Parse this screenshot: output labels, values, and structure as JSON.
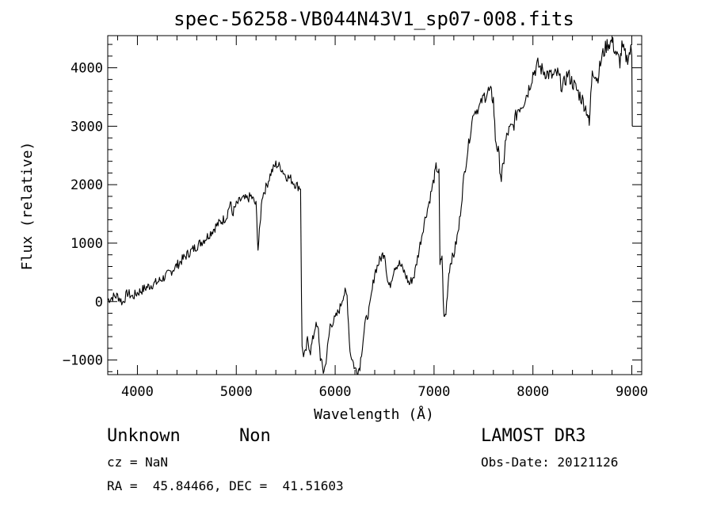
{
  "chart_data": {
    "type": "line",
    "title": "spec-56258-VB044N43V1_sp07-008.fits",
    "xlabel": "Wavelength (Å)",
    "ylabel": "Flux (relative)",
    "xlim": [
      3700,
      9100
    ],
    "ylim": [
      -1250,
      4550
    ],
    "x_ticks": [
      4000,
      5000,
      6000,
      7000,
      8000,
      9000
    ],
    "y_ticks": [
      -1000,
      0,
      1000,
      2000,
      3000,
      4000
    ],
    "x_tick_labels": [
      "4000",
      "5000",
      "6000",
      "7000",
      "8000",
      "9000"
    ],
    "y_tick_labels": [
      "−1000",
      "0",
      "1000",
      "2000",
      "3000",
      "4000"
    ],
    "grid": false,
    "legend": "none",
    "line_color": "#000000",
    "series": [
      {
        "x": [
          3700,
          3750,
          3800,
          3850,
          3900,
          3950,
          4000,
          4100,
          4200,
          4300,
          4400,
          4500,
          4600,
          4700,
          4800,
          4900,
          4940,
          4960,
          5000,
          5050,
          5100,
          5150,
          5200,
          5220,
          5240,
          5260,
          5300,
          5350,
          5400,
          5450,
          5500,
          5550,
          5600,
          5650,
          5660,
          5665,
          5680,
          5700,
          5720,
          5750,
          5780,
          5800,
          5830,
          5850,
          5880,
          5900,
          5930,
          5950,
          6000,
          6050,
          6080,
          6100,
          6120,
          6150,
          6200,
          6230,
          6250,
          6300,
          6350,
          6400,
          6450,
          6480,
          6500,
          6530,
          6550,
          6600,
          6650,
          6700,
          6750,
          6800,
          6850,
          6900,
          6950,
          7000,
          7020,
          7050,
          7060,
          7080,
          7100,
          7120,
          7150,
          7170,
          7200,
          7250,
          7300,
          7350,
          7400,
          7450,
          7500,
          7550,
          7580,
          7600,
          7620,
          7650,
          7680,
          7700,
          7720,
          7750,
          7800,
          7850,
          7900,
          7950,
          8000,
          8050,
          8100,
          8150,
          8200,
          8250,
          8300,
          8350,
          8400,
          8450,
          8500,
          8550,
          8570,
          8600,
          8650,
          8700,
          8750,
          8800,
          8850,
          8880,
          8900,
          8950,
          8990,
          9000,
          9005
        ],
        "y": [
          30,
          80,
          100,
          -20,
          150,
          80,
          150,
          250,
          330,
          450,
          620,
          800,
          950,
          1100,
          1300,
          1450,
          1700,
          1500,
          1650,
          1750,
          1750,
          1800,
          1650,
          900,
          1300,
          1800,
          1950,
          2200,
          2350,
          2300,
          2150,
          2100,
          2000,
          1950,
          50,
          -800,
          -900,
          -900,
          -650,
          -850,
          -600,
          -400,
          -500,
          -950,
          -1200,
          -1100,
          -700,
          -400,
          -300,
          -100,
          100,
          150,
          100,
          -850,
          -1150,
          -1200,
          -1100,
          -400,
          -100,
          500,
          700,
          800,
          850,
          350,
          250,
          600,
          650,
          500,
          300,
          450,
          900,
          1350,
          1700,
          2100,
          2300,
          2200,
          600,
          800,
          -300,
          -200,
          500,
          700,
          800,
          1250,
          2100,
          2700,
          3250,
          3300,
          3500,
          3600,
          3550,
          3450,
          2800,
          2550,
          2100,
          2300,
          2700,
          2900,
          3000,
          3300,
          3400,
          3600,
          3900,
          4050,
          3950,
          3900,
          3850,
          3900,
          3650,
          3900,
          3750,
          3600,
          3450,
          3250,
          3000,
          4000,
          3800,
          4200,
          4400,
          4450,
          4200,
          4100,
          4350,
          4150,
          4300,
          4200,
          3000
        ]
      }
    ]
  },
  "footer": {
    "object_class": "Unknown",
    "object_subclass": "Non",
    "cz": "cz = NaN",
    "coords": "RA =  45.84466, DEC =  41.51603",
    "survey": "LAMOST DR3",
    "obs_date": "Obs-Date: 20121126"
  }
}
